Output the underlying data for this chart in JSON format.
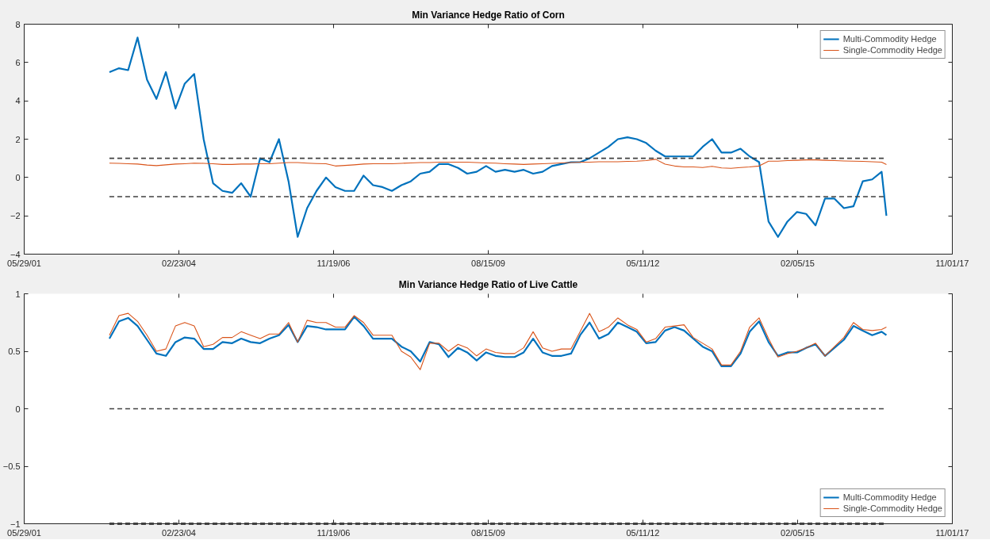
{
  "chart_data": [
    {
      "type": "line",
      "title": "Min Variance Hedge Ratio of Corn",
      "x": [
        "2002-12",
        "2003-02",
        "2003-04",
        "2003-06",
        "2003-08",
        "2003-10",
        "2003-12",
        "2004-02",
        "2004-04",
        "2004-06",
        "2004-08",
        "2004-10",
        "2004-12",
        "2005-02",
        "2005-04",
        "2005-06",
        "2005-08",
        "2005-10",
        "2005-12",
        "2006-02",
        "2006-04",
        "2006-06",
        "2006-08",
        "2006-10",
        "2006-12",
        "2007-02",
        "2007-04",
        "2007-06",
        "2007-08",
        "2007-10",
        "2007-12",
        "2008-02",
        "2008-04",
        "2008-06",
        "2008-08",
        "2008-10",
        "2008-12",
        "2009-02",
        "2009-04",
        "2009-06",
        "2009-08",
        "2009-10",
        "2009-12",
        "2010-02",
        "2010-04",
        "2010-06",
        "2010-08",
        "2010-10",
        "2010-12",
        "2011-02",
        "2011-04",
        "2011-06",
        "2011-08",
        "2011-10",
        "2011-12",
        "2012-02",
        "2012-04",
        "2012-06",
        "2012-08",
        "2012-10",
        "2012-12",
        "2013-02",
        "2013-04",
        "2013-06",
        "2013-08",
        "2013-10",
        "2013-12",
        "2014-02",
        "2014-04",
        "2014-06",
        "2014-08",
        "2014-10",
        "2014-12",
        "2015-02",
        "2015-04",
        "2015-06",
        "2015-08",
        "2015-10",
        "2015-12",
        "2016-02",
        "2016-04",
        "2016-06",
        "2016-08",
        "2016-09"
      ],
      "series": [
        {
          "name": "Multi-Commodity Hedge",
          "color": "#0072bd",
          "values": [
            5.5,
            5.7,
            5.6,
            7.3,
            5.1,
            4.1,
            5.5,
            3.6,
            4.9,
            5.4,
            2.0,
            -0.3,
            -0.7,
            -0.8,
            -0.3,
            -1.0,
            1.0,
            0.8,
            2.0,
            -0.2,
            -3.1,
            -1.6,
            -0.7,
            0.0,
            -0.5,
            -0.7,
            -0.7,
            0.1,
            -0.4,
            -0.5,
            -0.7,
            -0.4,
            -0.2,
            0.2,
            0.3,
            0.7,
            0.7,
            0.5,
            0.2,
            0.3,
            0.6,
            0.3,
            0.4,
            0.3,
            0.4,
            0.2,
            0.3,
            0.6,
            0.7,
            0.8,
            0.8,
            1.0,
            1.3,
            1.6,
            2.0,
            2.1,
            2.0,
            1.8,
            1.4,
            1.1,
            1.1,
            1.1,
            1.1,
            1.6,
            2.0,
            1.3,
            1.3,
            1.5,
            1.1,
            0.8,
            -2.3,
            -3.1,
            -2.3,
            -1.8,
            -1.9,
            -2.5,
            -1.1,
            -1.1,
            -1.6,
            -1.5,
            -0.2,
            -0.1,
            0.3,
            -2.0
          ]
        },
        {
          "name": "Single-Commodity Hedge",
          "color": "#d95319",
          "values": [
            0.75,
            0.74,
            0.72,
            0.7,
            0.65,
            0.62,
            0.66,
            0.7,
            0.72,
            0.75,
            0.74,
            0.72,
            0.68,
            0.68,
            0.7,
            0.7,
            0.72,
            0.72,
            0.75,
            0.78,
            0.78,
            0.75,
            0.73,
            0.72,
            0.6,
            0.63,
            0.66,
            0.7,
            0.72,
            0.72,
            0.72,
            0.74,
            0.76,
            0.78,
            0.78,
            0.8,
            0.8,
            0.8,
            0.8,
            0.78,
            0.76,
            0.75,
            0.72,
            0.7,
            0.68,
            0.7,
            0.72,
            0.74,
            0.76,
            0.78,
            0.8,
            0.8,
            0.82,
            0.82,
            0.82,
            0.84,
            0.85,
            0.88,
            0.95,
            0.7,
            0.6,
            0.55,
            0.55,
            0.52,
            0.58,
            0.5,
            0.48,
            0.52,
            0.55,
            0.6,
            0.85,
            0.85,
            0.88,
            0.9,
            0.92,
            0.92,
            0.9,
            0.88,
            0.86,
            0.85,
            0.84,
            0.82,
            0.8,
            0.68
          ]
        }
      ],
      "xlim": [
        "2001-05-29",
        "2017-11-01"
      ],
      "xticks": [
        {
          "value": "2001-05-29",
          "label": "05/29/01"
        },
        {
          "value": "2004-02-23",
          "label": "02/23/04"
        },
        {
          "value": "2006-11-19",
          "label": "11/19/06"
        },
        {
          "value": "2009-08-15",
          "label": "08/15/09"
        },
        {
          "value": "2012-05-11",
          "label": "05/11/12"
        },
        {
          "value": "2015-02-05",
          "label": "02/05/15"
        },
        {
          "value": "2017-11-01",
          "label": "11/01/17"
        }
      ],
      "ylim": [
        -4,
        8
      ],
      "yticks": [
        -4,
        -2,
        0,
        2,
        4,
        6,
        8
      ],
      "ref_lines": [
        {
          "axis": "y",
          "value": 1,
          "color": "#404040",
          "line_style": "dashed"
        },
        {
          "axis": "y",
          "value": -1,
          "color": "#404040",
          "line_style": "dashed"
        }
      ],
      "grid": false,
      "legend": "top right",
      "line_style": "solid"
    },
    {
      "type": "line",
      "title": "Min Variance Hedge Ratio of Live Cattle",
      "x": [
        "2002-12",
        "2003-02",
        "2003-04",
        "2003-06",
        "2003-08",
        "2003-10",
        "2003-12",
        "2004-02",
        "2004-04",
        "2004-06",
        "2004-08",
        "2004-10",
        "2004-12",
        "2005-02",
        "2005-04",
        "2005-06",
        "2005-08",
        "2005-10",
        "2005-12",
        "2006-02",
        "2006-04",
        "2006-06",
        "2006-08",
        "2006-10",
        "2006-12",
        "2007-02",
        "2007-04",
        "2007-06",
        "2007-08",
        "2007-10",
        "2007-12",
        "2008-02",
        "2008-04",
        "2008-06",
        "2008-08",
        "2008-10",
        "2008-12",
        "2009-02",
        "2009-04",
        "2009-06",
        "2009-08",
        "2009-10",
        "2009-12",
        "2010-02",
        "2010-04",
        "2010-06",
        "2010-08",
        "2010-10",
        "2010-12",
        "2011-02",
        "2011-04",
        "2011-06",
        "2011-08",
        "2011-10",
        "2011-12",
        "2012-02",
        "2012-04",
        "2012-06",
        "2012-08",
        "2012-10",
        "2012-12",
        "2013-02",
        "2013-04",
        "2013-06",
        "2013-08",
        "2013-10",
        "2013-12",
        "2014-02",
        "2014-04",
        "2014-06",
        "2014-08",
        "2014-10",
        "2014-12",
        "2015-02",
        "2015-04",
        "2015-06",
        "2015-08",
        "2015-10",
        "2015-12",
        "2016-02",
        "2016-04",
        "2016-06",
        "2016-08",
        "2016-09"
      ],
      "series": [
        {
          "name": "Multi-Commodity Hedge",
          "color": "#0072bd",
          "values": [
            0.61,
            0.76,
            0.79,
            0.72,
            0.6,
            0.48,
            0.46,
            0.58,
            0.62,
            0.61,
            0.52,
            0.52,
            0.58,
            0.57,
            0.61,
            0.58,
            0.57,
            0.61,
            0.64,
            0.73,
            0.58,
            0.72,
            0.71,
            0.69,
            0.69,
            0.69,
            0.8,
            0.72,
            0.61,
            0.61,
            0.61,
            0.54,
            0.5,
            0.41,
            0.58,
            0.56,
            0.45,
            0.53,
            0.49,
            0.42,
            0.49,
            0.46,
            0.45,
            0.45,
            0.49,
            0.61,
            0.49,
            0.46,
            0.46,
            0.48,
            0.64,
            0.75,
            0.61,
            0.65,
            0.75,
            0.71,
            0.67,
            0.57,
            0.58,
            0.68,
            0.71,
            0.68,
            0.61,
            0.54,
            0.5,
            0.37,
            0.37,
            0.48,
            0.67,
            0.76,
            0.58,
            0.46,
            0.49,
            0.49,
            0.53,
            0.56,
            0.46,
            0.53,
            0.6,
            0.72,
            0.68,
            0.64,
            0.67,
            0.64
          ]
        },
        {
          "name": "Single-Commodity Hedge",
          "color": "#d95319",
          "values": [
            0.64,
            0.81,
            0.83,
            0.76,
            0.64,
            0.5,
            0.52,
            0.72,
            0.75,
            0.72,
            0.54,
            0.56,
            0.62,
            0.62,
            0.67,
            0.64,
            0.61,
            0.65,
            0.65,
            0.75,
            0.58,
            0.77,
            0.75,
            0.75,
            0.71,
            0.71,
            0.81,
            0.75,
            0.64,
            0.64,
            0.64,
            0.5,
            0.45,
            0.34,
            0.57,
            0.57,
            0.5,
            0.56,
            0.53,
            0.46,
            0.52,
            0.49,
            0.48,
            0.48,
            0.53,
            0.67,
            0.53,
            0.5,
            0.52,
            0.52,
            0.67,
            0.83,
            0.67,
            0.71,
            0.79,
            0.73,
            0.69,
            0.58,
            0.61,
            0.71,
            0.72,
            0.73,
            0.62,
            0.57,
            0.52,
            0.38,
            0.38,
            0.5,
            0.71,
            0.79,
            0.61,
            0.45,
            0.48,
            0.5,
            0.53,
            0.57,
            0.46,
            0.54,
            0.62,
            0.75,
            0.69,
            0.68,
            0.69,
            0.71
          ]
        }
      ],
      "xlim": [
        "2001-05-29",
        "2017-11-01"
      ],
      "xticks": [
        {
          "value": "2001-05-29",
          "label": "05/29/01"
        },
        {
          "value": "2004-02-23",
          "label": "02/23/04"
        },
        {
          "value": "2006-11-19",
          "label": "11/19/06"
        },
        {
          "value": "2009-08-15",
          "label": "08/15/09"
        },
        {
          "value": "2012-05-11",
          "label": "05/11/12"
        },
        {
          "value": "2015-02-05",
          "label": "02/05/15"
        },
        {
          "value": "2017-11-01",
          "label": "11/01/17"
        }
      ],
      "ylim": [
        -1,
        1
      ],
      "yticks": [
        -1,
        -0.5,
        0,
        0.5,
        1
      ],
      "ref_lines": [
        {
          "axis": "y",
          "value": 0,
          "color": "#404040",
          "line_style": "dashed"
        },
        {
          "axis": "y",
          "value": -1,
          "color": "#404040",
          "line_style": "dashed"
        }
      ],
      "grid": false,
      "legend": "bottom right",
      "line_style": "solid"
    }
  ]
}
